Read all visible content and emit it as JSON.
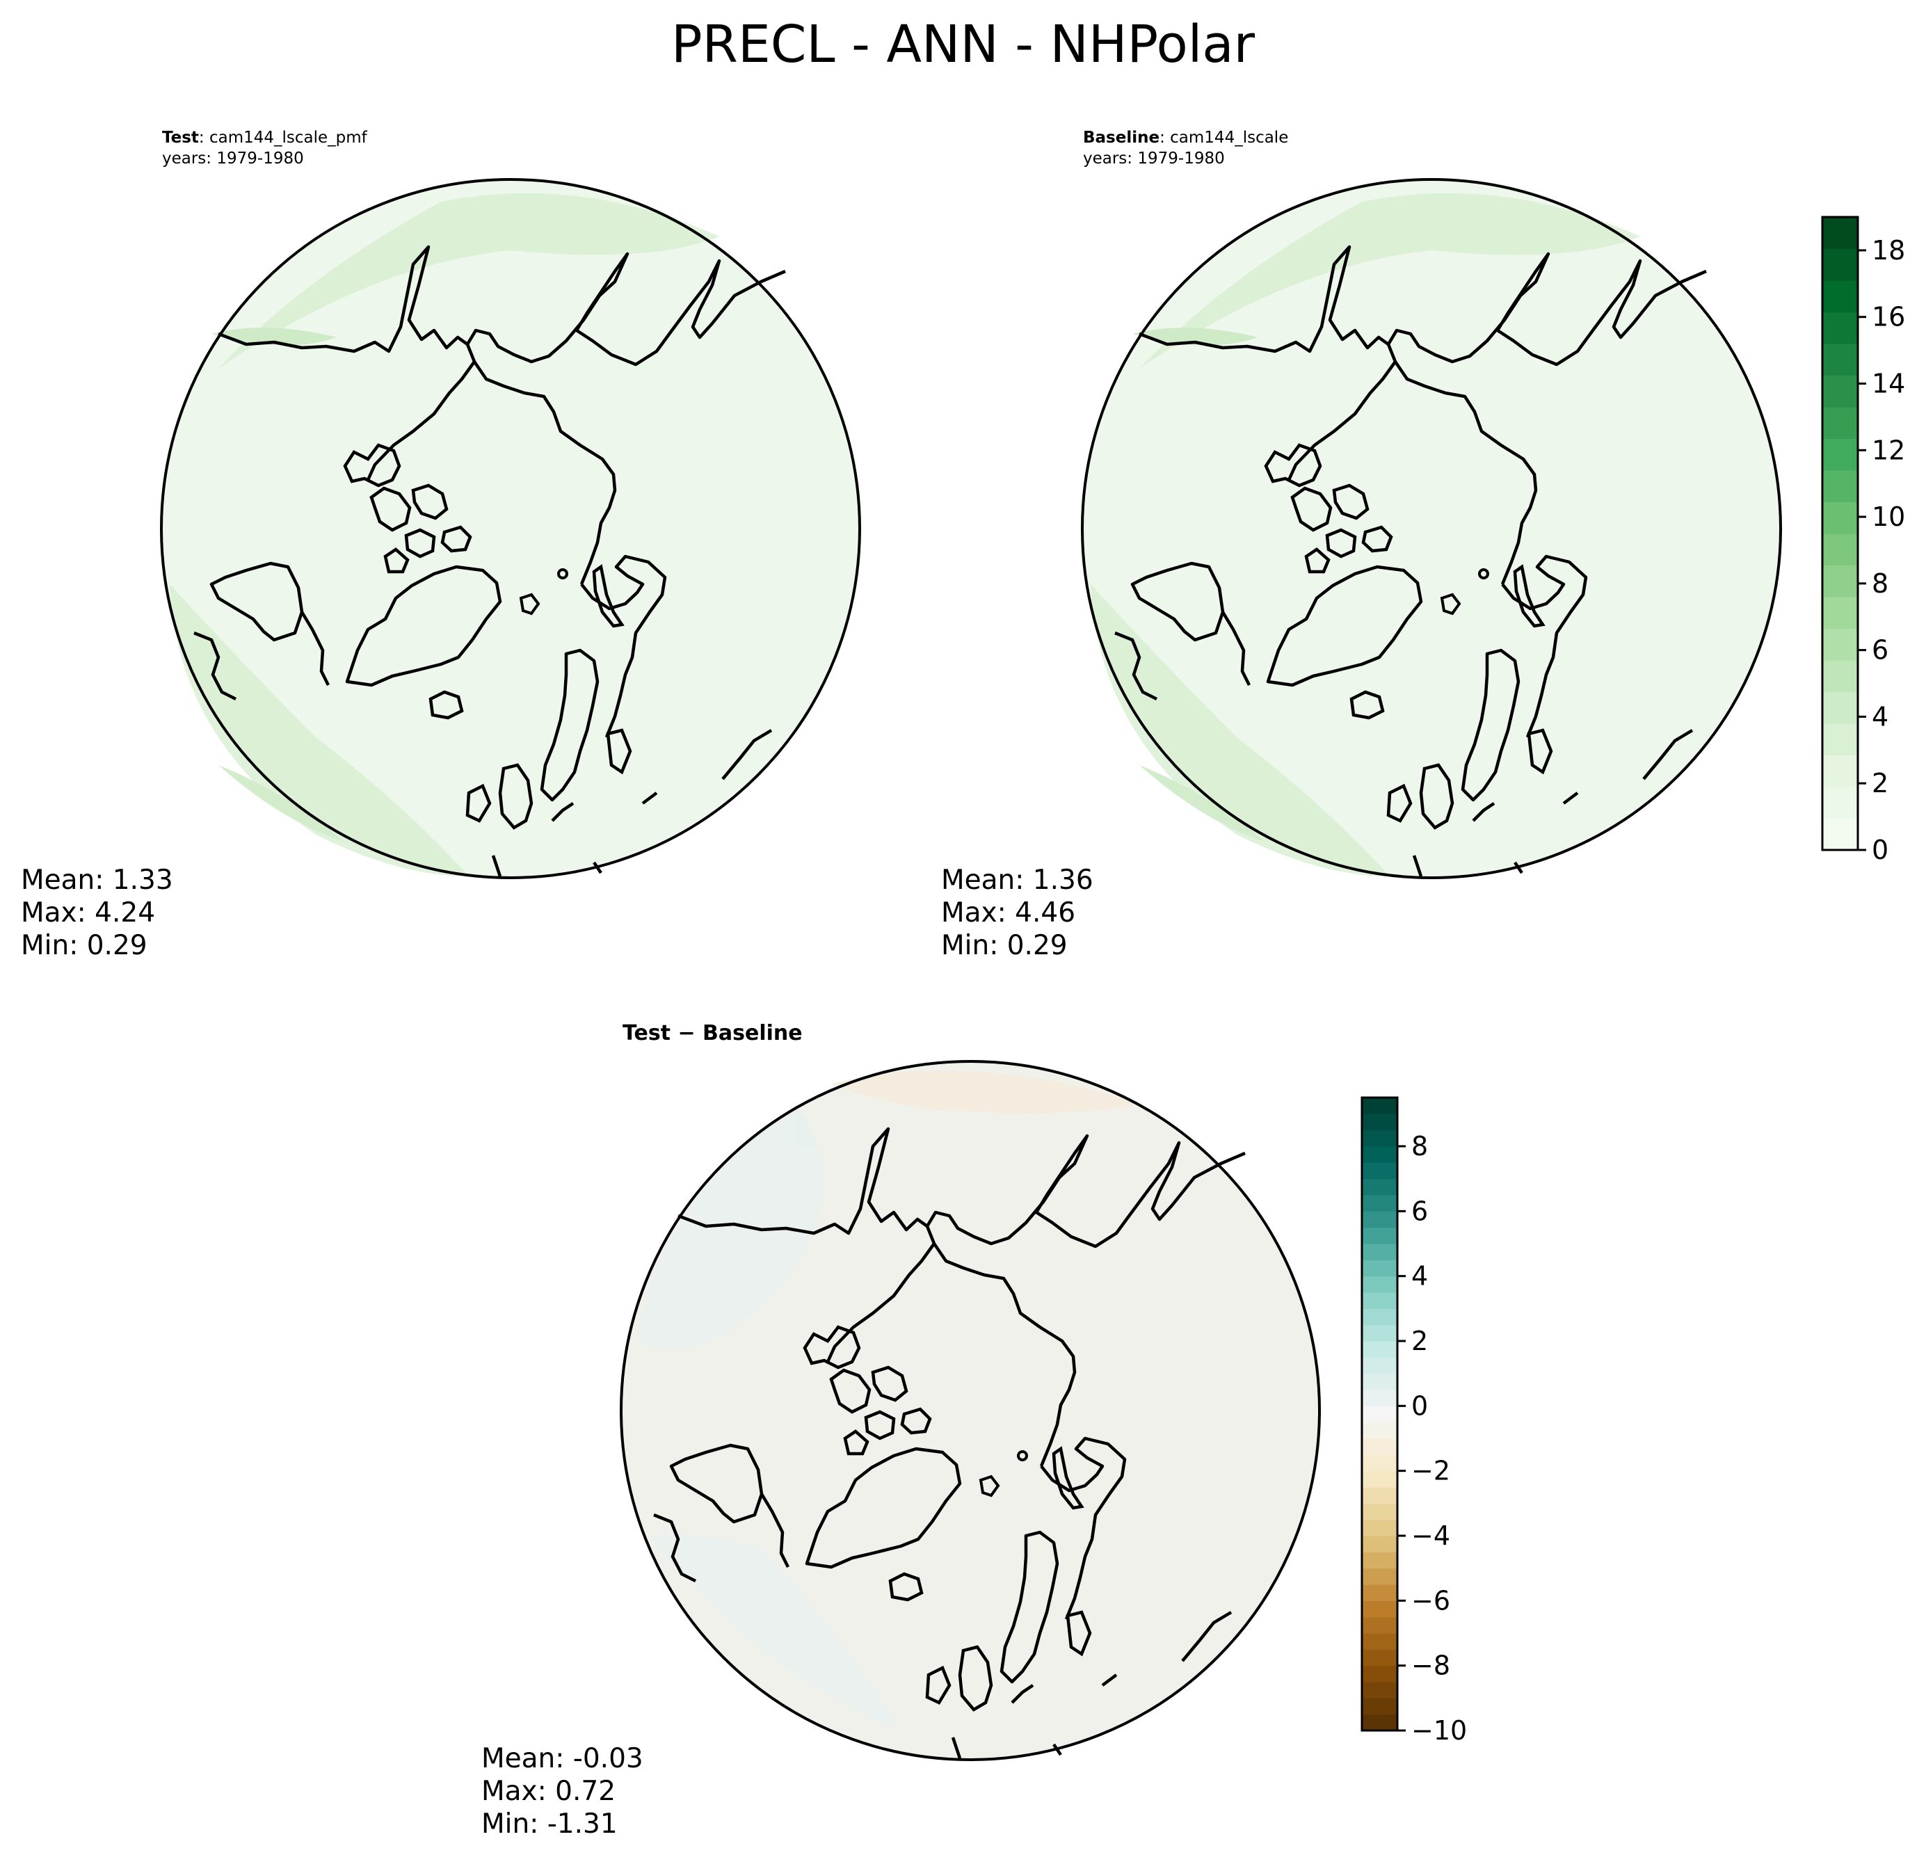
{
  "figure": {
    "title": "PRECL - ANN - NHPolar"
  },
  "panels": [
    {
      "id": "test",
      "label_bold": "Test",
      "label_rest": ": cam144_lscale_pmf",
      "years": "years: 1979-1980",
      "stats": {
        "mean": "Mean:  1.33",
        "max": "Max:  4.24",
        "min": "Min:  0.29"
      },
      "field": {
        "ocean_color": "#eef7ec",
        "wet_color": "#d6eecf",
        "wettest_color": "#c4e6bb"
      }
    },
    {
      "id": "baseline",
      "label_bold": "Baseline",
      "label_rest": ": cam144_lscale",
      "years": "years: 1979-1980",
      "stats": {
        "mean": "Mean:  1.36",
        "max": "Max:  4.46",
        "min": "Min:  0.29"
      },
      "field": {
        "ocean_color": "#eef7ec",
        "wet_color": "#d6eecf",
        "wettest_color": "#c4e6bb"
      }
    },
    {
      "id": "difference",
      "title": "Test − Baseline",
      "stats": {
        "mean": "Mean: -0.03",
        "max": "Max:  0.72",
        "min": "Min: -1.31"
      },
      "field": {
        "ocean_color": "#f1f1ec",
        "wet_color": "#f5ecdc",
        "wettest_color": "#e8f1ef"
      }
    }
  ],
  "colorbars": [
    {
      "id": "precip",
      "colormap": "Greens",
      "range": [
        0,
        19
      ],
      "levels": 20,
      "ticks": [
        0,
        2,
        4,
        6,
        8,
        10,
        12,
        14,
        16,
        18
      ],
      "tick_labels": [
        "0",
        "2",
        "4",
        "6",
        "8",
        "10",
        "12",
        "14",
        "16",
        "18"
      ],
      "colors": [
        "#f7fcf5",
        "#e5f5e0",
        "#c7e9c0",
        "#a1d99b",
        "#74c476",
        "#41ab5d",
        "#238b45",
        "#006d2c",
        "#00441b"
      ]
    },
    {
      "id": "diff",
      "colormap": "BrBG",
      "range": [
        -10,
        9.5
      ],
      "levels": 39,
      "ticks": [
        -10,
        -8,
        -6,
        -4,
        -2,
        0,
        2,
        4,
        6,
        8
      ],
      "tick_labels": [
        "−10",
        "−8",
        "−6",
        "−4",
        "−2",
        "0",
        "2",
        "4",
        "6",
        "8"
      ],
      "colors": [
        "#543005",
        "#8c510a",
        "#bf812d",
        "#dfc27d",
        "#f6e8c3",
        "#f5f5f5",
        "#c7eae5",
        "#80cdc1",
        "#35978f",
        "#01665e",
        "#003c30"
      ]
    }
  ]
}
